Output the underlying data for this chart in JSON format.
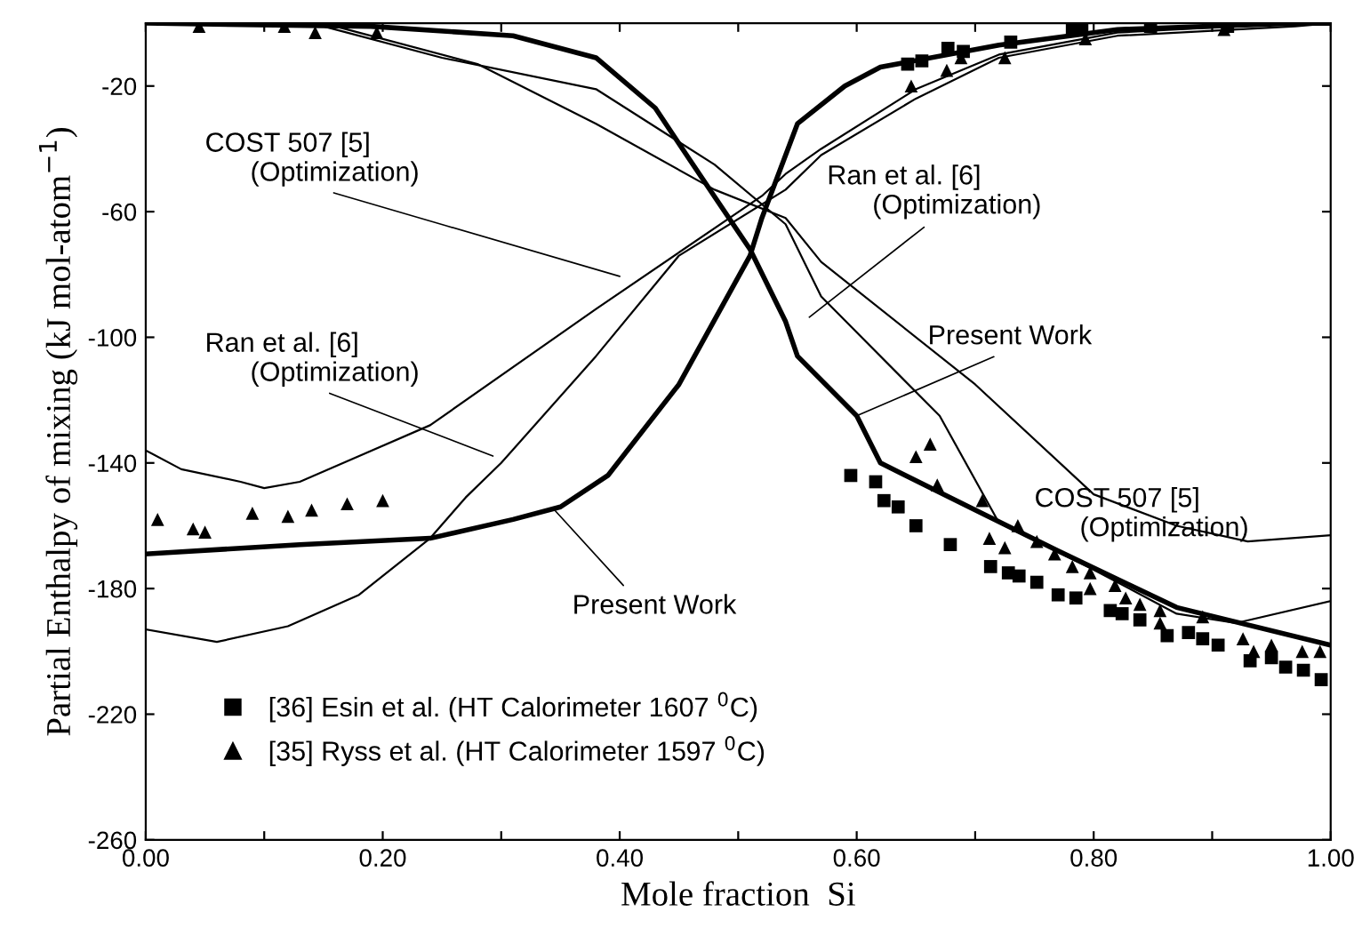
{
  "chart_data": {
    "type": "line",
    "xlabel": "Mole fraction  Si",
    "ylabel": "Partial Enthalpy of mixing (kJ mol-atom$^{−1}$)",
    "xlim": [
      0,
      1
    ],
    "ylim": [
      -260,
      0
    ],
    "xticks": [
      {
        "value": 0,
        "label": "0.00"
      },
      {
        "value": 0.1,
        "label": null
      },
      {
        "value": 0.2,
        "label": "0.20"
      },
      {
        "value": 0.3,
        "label": null
      },
      {
        "value": 0.4,
        "label": "0.40"
      },
      {
        "value": 0.5,
        "label": null
      },
      {
        "value": 0.6,
        "label": "0.60"
      },
      {
        "value": 0.7,
        "label": null
      },
      {
        "value": 0.8,
        "label": "0.80"
      },
      {
        "value": 0.9,
        "label": null
      },
      {
        "value": 1,
        "label": "1.00"
      }
    ],
    "yticks": [
      -260,
      -220,
      -180,
      -140,
      -100,
      -60,
      -20
    ],
    "grid": false,
    "legend": "bottom left",
    "series": [
      {
        "color": "#000000",
        "marker": "none",
        "x": [
          0,
          0.13,
          0.24,
          0.31,
          0.35,
          0.39,
          0.45,
          0.51,
          0.52,
          0.55,
          0.59,
          0.62,
          0.72,
          0.82,
          0.97,
          1.0
        ],
        "values": [
          -169,
          -166,
          -164,
          -158,
          -154,
          -144,
          -115,
          -74,
          -62,
          -32,
          -20,
          -14,
          -7,
          -2,
          0,
          0
        ]
      },
      {
        "color": "#000000",
        "marker": "none",
        "x": [
          0,
          0.19,
          0.31,
          0.38,
          0.43,
          0.46,
          0.51,
          0.54,
          0.55,
          0.6,
          0.62,
          0.7,
          0.77,
          0.87,
          1.0
        ],
        "values": [
          0,
          -1,
          -4,
          -11,
          -27,
          -44,
          -72,
          -95,
          -106,
          -125,
          -140,
          -155,
          -168,
          -186,
          -198
        ]
      },
      {
        "color": "#000000",
        "marker": "none",
        "x": [
          0,
          0.03,
          0.08,
          0.1,
          0.13,
          0.24,
          0.38,
          0.52,
          0.54,
          0.57,
          0.65,
          0.72,
          0.82,
          0.97,
          1.0
        ],
        "values": [
          -136,
          -142,
          -146,
          -148,
          -146,
          -128,
          -91,
          -55,
          -48,
          -40,
          -21,
          -10,
          -3,
          0,
          0
        ]
      },
      {
        "color": "#000000",
        "marker": "none",
        "x": [
          0,
          0.06,
          0.12,
          0.18,
          0.24,
          0.27,
          0.3,
          0.38,
          0.45,
          0.54,
          0.57,
          0.65,
          0.72,
          0.82,
          0.97,
          1.0
        ],
        "values": [
          -193,
          -197,
          -192,
          -182,
          -164,
          -151,
          -140,
          -106,
          -74,
          -53,
          -42,
          -24,
          -11,
          -4,
          -1,
          0
        ]
      },
      {
        "color": "#000000",
        "marker": "none",
        "x": [
          0,
          0.16,
          0.28,
          0.38,
          0.48,
          0.54,
          0.57,
          0.7,
          0.8,
          0.87,
          0.93,
          1.0
        ],
        "values": [
          0,
          -1,
          -13,
          -32,
          -53,
          -62,
          -76,
          -115,
          -150,
          -160,
          -165,
          -163
        ]
      },
      {
        "color": "#000000",
        "marker": "none",
        "x": [
          0,
          0.15,
          0.25,
          0.38,
          0.48,
          0.54,
          0.57,
          0.67,
          0.72,
          0.8,
          0.87,
          0.92,
          1.0
        ],
        "values": [
          0,
          -1,
          -11,
          -21,
          -45,
          -64,
          -87,
          -125,
          -159,
          -174,
          -188,
          -191,
          -184
        ]
      },
      {
        "type": "scatter",
        "name": "[36] Esin et al. (HT Calorimeter 1607 $^{0}$C)",
        "color": "#000000",
        "marker": "square",
        "x": [
          0.643,
          0.655,
          0.677,
          0.69,
          0.73,
          0.782,
          0.79,
          0.848,
          0.913,
          0.595,
          0.616,
          0.623,
          0.635,
          0.65,
          0.679,
          0.713,
          0.728,
          0.737,
          0.752,
          0.77,
          0.785,
          0.814,
          0.824,
          0.839,
          0.862,
          0.88,
          0.892,
          0.905,
          0.932,
          0.95,
          0.962,
          0.977,
          0.992
        ],
        "values": [
          -13,
          -12,
          -8,
          -9,
          -6,
          -2,
          -2,
          -1,
          -1,
          -144,
          -146,
          -152,
          -154,
          -160,
          -166,
          -173,
          -175,
          -176,
          -178,
          -182,
          -183,
          -187,
          -188,
          -190,
          -195,
          -194,
          -196,
          -198,
          -203,
          -202,
          -205,
          -206,
          -209
        ]
      },
      {
        "type": "scatter",
        "name": "[35] Ryss et al. (HT Calorimeter 1597 $^{0}$C)",
        "color": "#000000",
        "marker": "triangle",
        "x": [
          0.045,
          0.117,
          0.143,
          0.195,
          0.01,
          0.04,
          0.05,
          0.09,
          0.12,
          0.14,
          0.17,
          0.2,
          0.646,
          0.676,
          0.688,
          0.725,
          0.793,
          0.91,
          0.65,
          0.662,
          0.668,
          0.706,
          0.736,
          0.712,
          0.725,
          0.752,
          0.767,
          0.782,
          0.797,
          0.797,
          0.818,
          0.827,
          0.839,
          0.856,
          0.856,
          0.892,
          0.926,
          0.935,
          0.95,
          0.976,
          0.991
        ],
        "values": [
          -1,
          -1,
          -3,
          -3,
          -158,
          -161,
          -162,
          -156,
          -157,
          -155,
          -153,
          -152,
          -20,
          -15,
          -11,
          -11,
          -5,
          -2,
          -138,
          -134,
          -147,
          -152,
          -160,
          -164,
          -167,
          -165,
          -169,
          -173,
          -175,
          -180,
          -179,
          -183,
          -185,
          -187,
          -191,
          -189,
          -196,
          -200,
          -198,
          -200,
          -200
        ]
      }
    ],
    "annotations": [
      "COST 507 [5]\n      (Optimization)",
      "Ran et al. [6]\n      (Optimization)",
      {
        "text": "Present Work",
        "x": 0.345,
        "y": -155
      },
      "Ran et al. [6]\n      (Optimization)",
      {
        "text": "Present Work",
        "x": 0.6,
        "y": -125
      },
      "COST 507 [5]\n      (Optimization)"
    ]
  }
}
